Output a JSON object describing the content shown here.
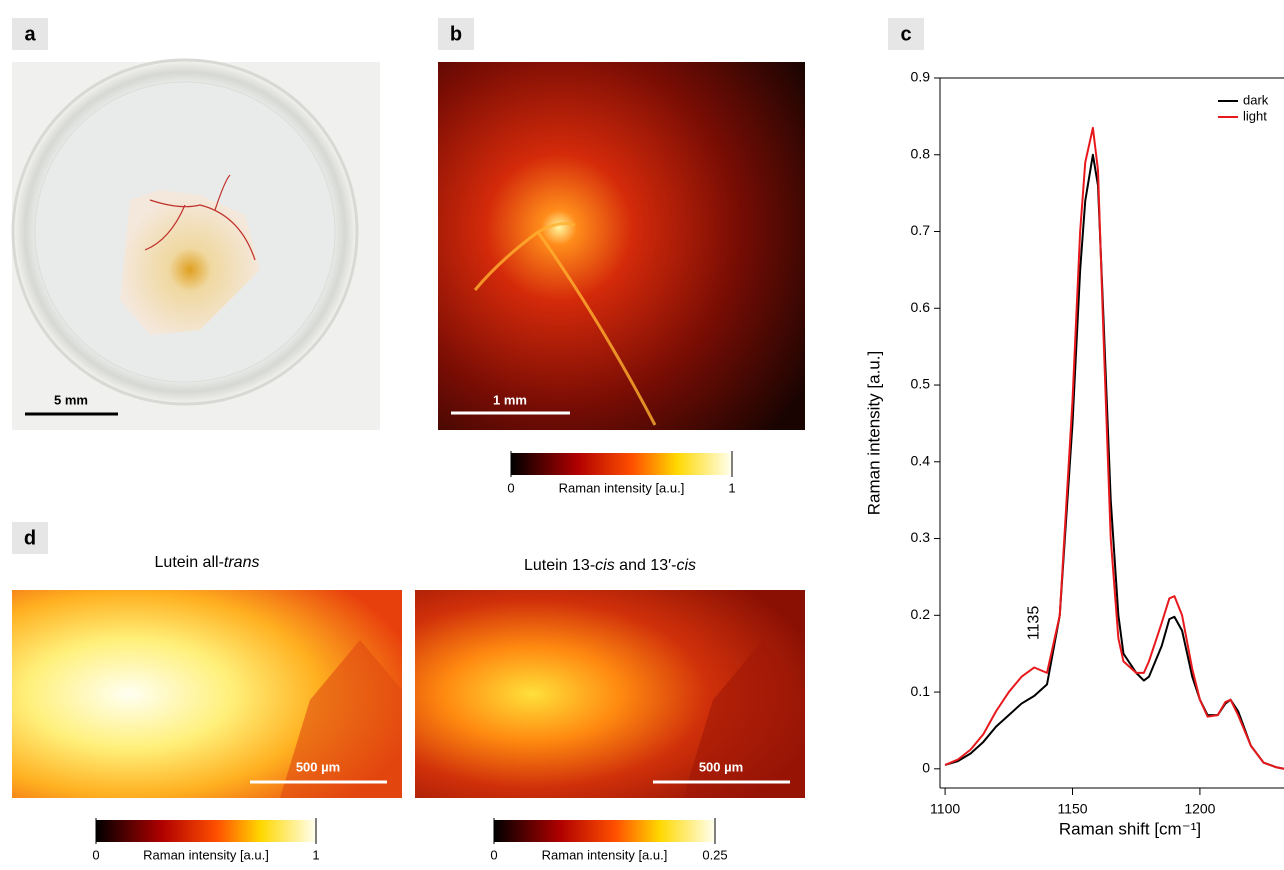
{
  "chart_data": {
    "type": "line",
    "xlabel": "Raman shift [cm⁻¹]",
    "ylabel": "Raman intensity [a.u.]",
    "x": [
      1100,
      1105,
      1110,
      1115,
      1120,
      1125,
      1130,
      1135,
      1140,
      1145,
      1150,
      1153,
      1155,
      1158,
      1160,
      1162,
      1165,
      1168,
      1170,
      1175,
      1178,
      1180,
      1185,
      1188,
      1190,
      1193,
      1197,
      1200,
      1203,
      1207,
      1210,
      1212,
      1215,
      1220,
      1225,
      1230,
      1233
    ],
    "series": [
      {
        "name": "dark",
        "color": "#000000",
        "values": [
          0.005,
          0.01,
          0.02,
          0.035,
          0.055,
          0.07,
          0.085,
          0.095,
          0.11,
          0.2,
          0.45,
          0.65,
          0.74,
          0.8,
          0.76,
          0.6,
          0.35,
          0.2,
          0.15,
          0.125,
          0.115,
          0.12,
          0.16,
          0.195,
          0.198,
          0.18,
          0.12,
          0.09,
          0.07,
          0.07,
          0.085,
          0.09,
          0.075,
          0.03,
          0.008,
          0.002,
          0
        ]
      },
      {
        "name": "light",
        "color": "#e8191c",
        "values": [
          0.005,
          0.012,
          0.025,
          0.045,
          0.075,
          0.1,
          0.12,
          0.132,
          0.125,
          0.2,
          0.48,
          0.7,
          0.79,
          0.835,
          0.78,
          0.58,
          0.3,
          0.17,
          0.14,
          0.125,
          0.125,
          0.14,
          0.19,
          0.222,
          0.225,
          0.2,
          0.13,
          0.09,
          0.068,
          0.07,
          0.087,
          0.09,
          0.07,
          0.03,
          0.008,
          0.002,
          0
        ]
      }
    ],
    "annotations": [
      {
        "text": "1135",
        "x": 1135,
        "y": 0.19
      }
    ],
    "xlim": [
      1098,
      1233
    ],
    "ylim": [
      -0.025,
      0.9
    ],
    "xticks": [
      1100,
      1150,
      1200
    ],
    "yticks": [
      0,
      0.1,
      0.2,
      0.3,
      0.4,
      0.5,
      0.6,
      0.7,
      0.8,
      0.9
    ],
    "legend": "upper right"
  },
  "panels": {
    "a": {
      "label": "a",
      "scale_bar": "5 mm"
    },
    "b": {
      "label": "b",
      "scale_bar": "1 mm",
      "colorbar": {
        "label": "Raman intensity [a.u.]",
        "ticks": [
          0,
          1
        ]
      }
    },
    "c": {
      "label": "c"
    },
    "d": {
      "label": "d",
      "maps": [
        {
          "title_parts": [
            "Lutein all-",
            "trans"
          ],
          "scale_bar": "500 µm",
          "colorbar": {
            "label": "Raman intensity [a.u.]",
            "ticks": [
              0,
              1
            ]
          }
        },
        {
          "title_parts": [
            "Lutein 13-",
            "cis",
            " and 13′-",
            "cis"
          ],
          "scale_bar": "500 µm",
          "colorbar": {
            "label": "Raman intensity [a.u.]",
            "ticks": [
              0,
              0.25
            ]
          }
        }
      ]
    }
  }
}
